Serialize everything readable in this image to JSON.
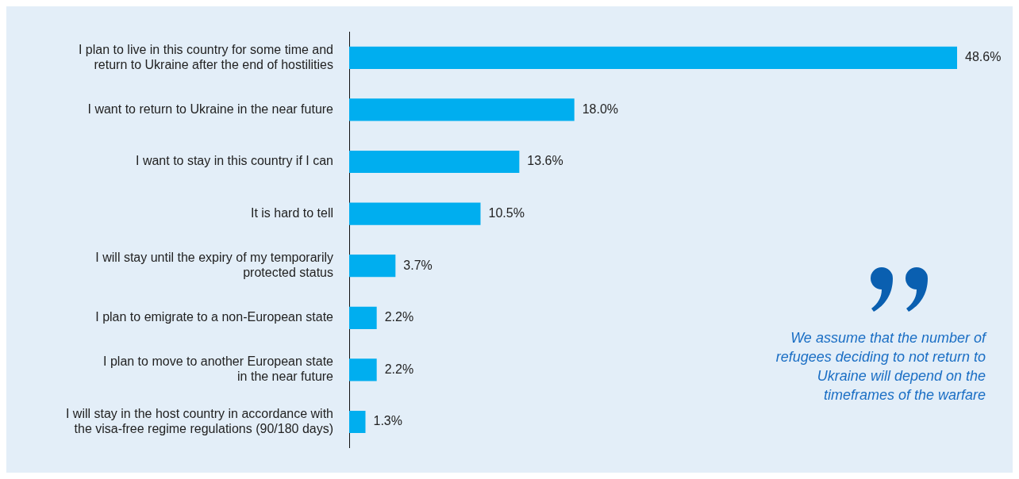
{
  "chart_data": {
    "type": "bar",
    "orientation": "horizontal",
    "categories": [
      "I plan to live in this country for some time and\nreturn to Ukraine after the end of hostilities",
      "I want to return to Ukraine in the near future",
      "I want to stay in this country if I can",
      "It is hard to tell",
      "I will stay until the expiry of my temporarily\nprotected status",
      "I plan to emigrate to a non-European state",
      "I plan to move to another European state\nin the near future",
      "I will stay in the host country in accordance with\nthe visa-free regime regulations (90/180 days)"
    ],
    "values": [
      48.6,
      18.0,
      13.6,
      10.5,
      3.7,
      2.2,
      2.2,
      1.3
    ],
    "value_labels": [
      "48.6%",
      "18.0%",
      "13.6%",
      "10.5%",
      "3.7%",
      "2.2%",
      "2.2%",
      "1.3%"
    ],
    "color": "#00aeef",
    "legend": false,
    "annotations": [
      "We assume that the number of refugees deciding to not return to Ukraine will depend on the timeframes of the warfare"
    ]
  }
}
